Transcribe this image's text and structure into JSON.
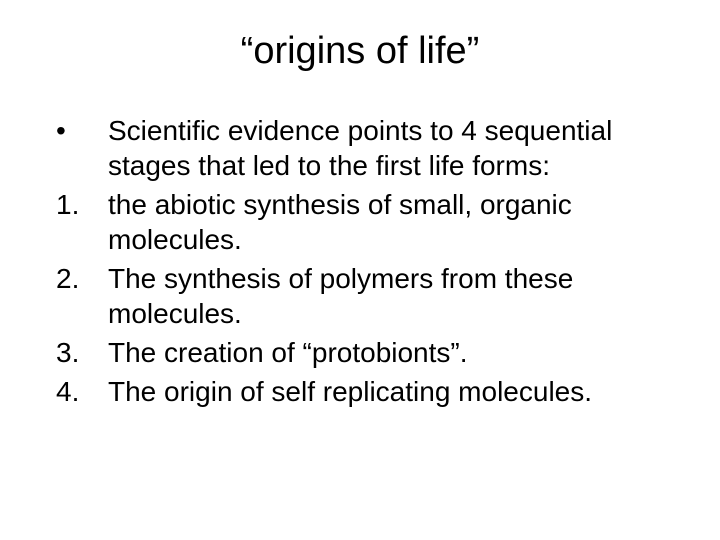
{
  "title": "“origins of life”",
  "items": [
    {
      "marker": "•",
      "text": "Scientific evidence points to 4 sequential stages that led to the first life forms:"
    },
    {
      "marker": "1.",
      "text": "the abiotic synthesis of small, organic molecules."
    },
    {
      "marker": "2.",
      "text": "The synthesis of polymers from these molecules."
    },
    {
      "marker": "3.",
      "text": "The creation of “protobionts”."
    },
    {
      "marker": "4.",
      "text": "The origin of self replicating molecules."
    }
  ],
  "colors": {
    "background": "#ffffff",
    "text": "#000000"
  },
  "typography": {
    "title_fontsize": 38,
    "body_fontsize": 28,
    "font_family": "Arial"
  }
}
